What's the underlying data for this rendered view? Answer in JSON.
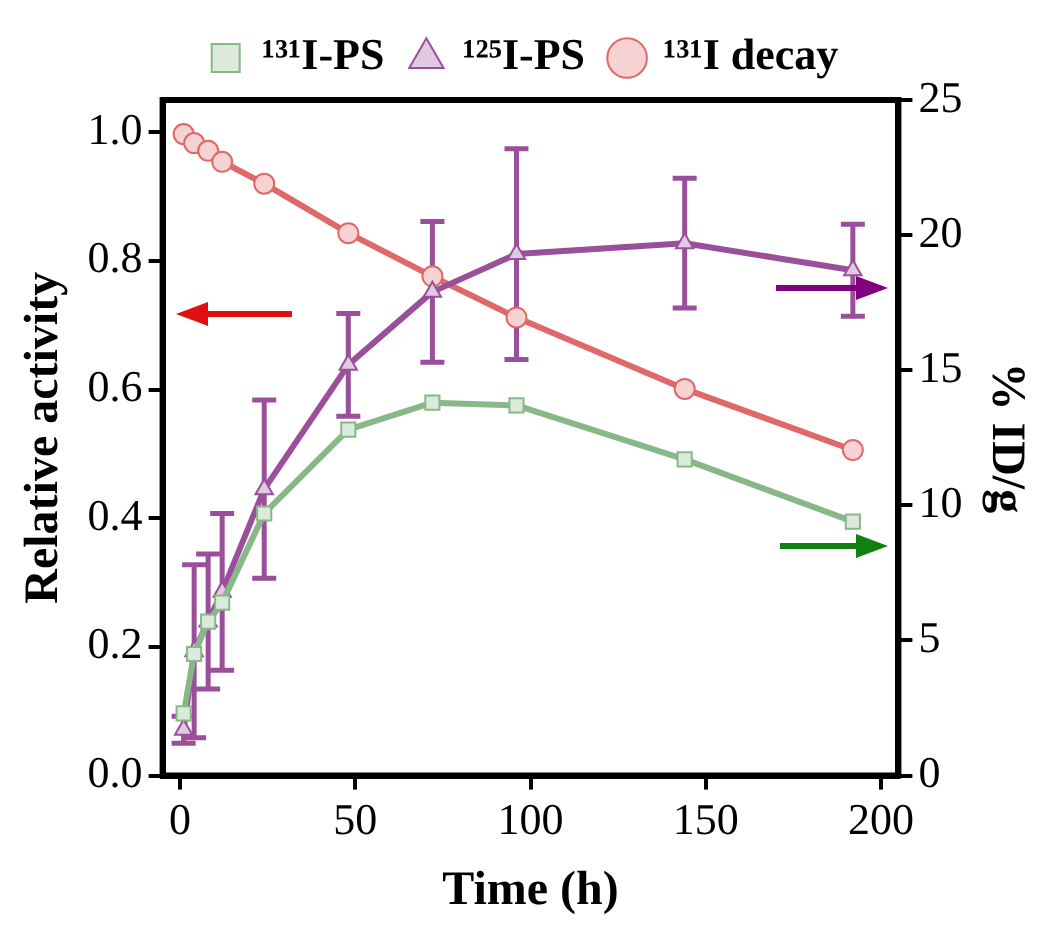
{
  "chart_data": {
    "type": "line",
    "xlabel": "Time (h)",
    "ylabel": "Relative activity",
    "y2label": "% ID/g",
    "x": [
      1,
      4,
      8,
      12,
      24,
      48,
      72,
      96,
      144,
      192
    ],
    "series": [
      {
        "name": "¹³¹I decay",
        "color": "#e06868",
        "marker": "circle",
        "values": [
          0.997,
          0.983,
          0.971,
          0.954,
          0.92,
          0.843,
          0.776,
          0.712,
          0.601,
          0.506
        ]
      },
      {
        "name": "¹²⁵I-PS",
        "color": "#9a4f9a",
        "marker": "triangle",
        "axis": "y2",
        "values": [
          1.7,
          4.6,
          5.7,
          6.8,
          10.6,
          15.2,
          17.9,
          19.3,
          19.7,
          18.7
        ],
        "errors": [
          0.5,
          3.2,
          2.5,
          2.9,
          3.3,
          1.9,
          2.6,
          3.9,
          2.4,
          1.7
        ]
      },
      {
        "name": "¹³¹I-PS",
        "color": "#88b888",
        "marker": "square",
        "axis": "y2",
        "values": [
          2.3,
          4.5,
          5.7,
          6.4,
          9.7,
          12.8,
          13.8,
          13.7,
          11.7,
          9.4
        ]
      }
    ],
    "xlim": [
      -5,
      205
    ],
    "xticks": [
      0,
      50,
      100,
      150,
      200
    ],
    "ylim": [
      0,
      1.05
    ],
    "yticks": [
      {
        "value": 0,
        "label": "0.0"
      },
      {
        "value": 0.2,
        "label": "0.2"
      },
      {
        "value": 0.4,
        "label": "0.4"
      },
      {
        "value": 0.6,
        "label": "0.6"
      },
      {
        "value": 0.8,
        "label": "0.8"
      },
      {
        "value": 1,
        "label": "1.0"
      }
    ],
    "y2lim": [
      0,
      25
    ],
    "y2ticks": [
      0,
      5,
      10,
      15,
      20,
      25
    ],
    "legend": "top",
    "grid": false
  }
}
